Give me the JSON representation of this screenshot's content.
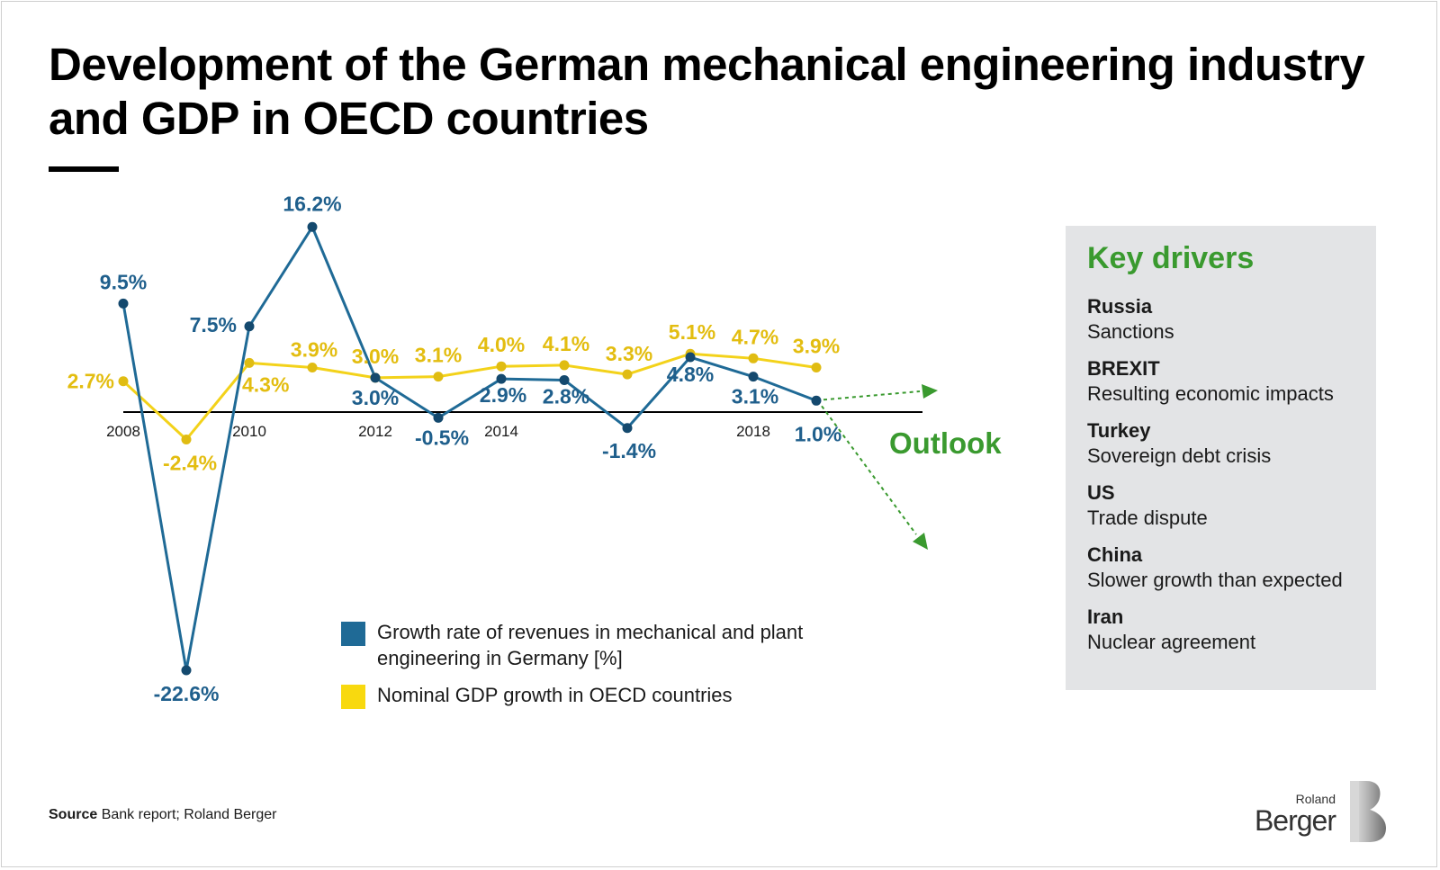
{
  "title": "Development of the German mechanical engineering industry and GDP in OECD countries",
  "chart_data": {
    "type": "line",
    "x": [
      2008,
      2009,
      2010,
      2011,
      2012,
      2013,
      2014,
      2015,
      2016,
      2017,
      2018,
      2019
    ],
    "x_tick_labels": [
      "2008",
      "2010",
      "2012",
      "2014",
      "2018"
    ],
    "x_tick_positions": [
      2008,
      2010,
      2012,
      2014,
      2018
    ],
    "series": [
      {
        "name": "Growth rate of revenues in mechanical and plant engineering in Germany [%]",
        "color": "#1f6a96",
        "values": [
          9.5,
          -22.6,
          7.5,
          16.2,
          3.0,
          -0.5,
          2.9,
          2.8,
          -1.4,
          4.8,
          3.1,
          1.0
        ],
        "labels": [
          "9.5%",
          "-22.6%",
          "7.5%",
          "16.2%",
          "3.0%",
          "-0.5%",
          "2.9%",
          "2.8%",
          "-1.4%",
          "4.8%",
          "3.1%",
          "1.0%"
        ]
      },
      {
        "name": "Nominal GDP growth in OECD countries",
        "color": "#e8c619",
        "values": [
          2.7,
          -2.4,
          4.3,
          3.9,
          3.0,
          3.1,
          4.0,
          4.1,
          3.3,
          5.1,
          4.7,
          3.9
        ],
        "labels": [
          "2.7%",
          "-2.4%",
          "4.3%",
          "3.9%",
          "3.0%",
          "3.1%",
          "4.0%",
          "4.1%",
          "3.3%",
          "5.1%",
          "4.7%",
          "3.9%"
        ]
      }
    ],
    "ylim": [
      -22.6,
      16.2
    ],
    "outlook_label": "Outlook",
    "outlook_color": "#3a9a2f"
  },
  "key_drivers": {
    "heading": "Key drivers",
    "items": [
      {
        "name": "Russia",
        "text": "Sanctions"
      },
      {
        "name": "BREXIT",
        "text": "Resulting economic impacts"
      },
      {
        "name": "Turkey",
        "text": "Sovereign debt crisis"
      },
      {
        "name": "US",
        "text": "Trade dispute"
      },
      {
        "name": "China",
        "text": "Slower growth than expected"
      },
      {
        "name": "Iran",
        "text": "Nuclear agreement"
      }
    ]
  },
  "legend": {
    "blue_label": "Growth rate of revenues in mechanical and plant engineering in Germany [%]",
    "yellow_label": "Nominal GDP growth in OECD countries"
  },
  "source": {
    "prefix": "Source",
    "text": "Bank report; Roland Berger"
  },
  "logo": {
    "line1": "Roland",
    "line2": "Berger"
  }
}
